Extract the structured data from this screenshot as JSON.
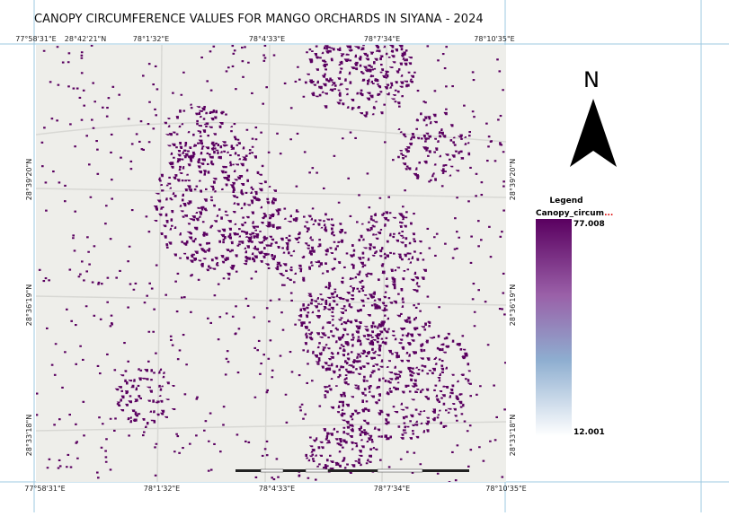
{
  "title": "CANOPY CIRCUMFERENCE VALUES FOR MANGO ORCHARDS IN SIYANA - 2024",
  "north": "N",
  "top_labels": [
    "77°58'31\"E",
    "28°42'21\"N",
    "78°1'32\"E",
    "78°4'33\"E",
    "78°7'34\"E",
    "78°10'35\"E"
  ],
  "bottom_labels": [
    "77°58'31\"E",
    "78°1'32\"E",
    "78°4'33\"E",
    "78°7'34\"E",
    "78°10'35\"E"
  ],
  "left_labels": [
    "28°39'20\"N",
    "28°36'19\"N",
    "28°33'18\"N"
  ],
  "right_labels": [
    "28°39'20\"N",
    "28°36'19\"N",
    "28°33'18\"N"
  ],
  "legend": {
    "title": "Legend",
    "layer": "Canopy_circum",
    "ellipsis": "...",
    "max": "77.008",
    "min": "12.001"
  }
}
